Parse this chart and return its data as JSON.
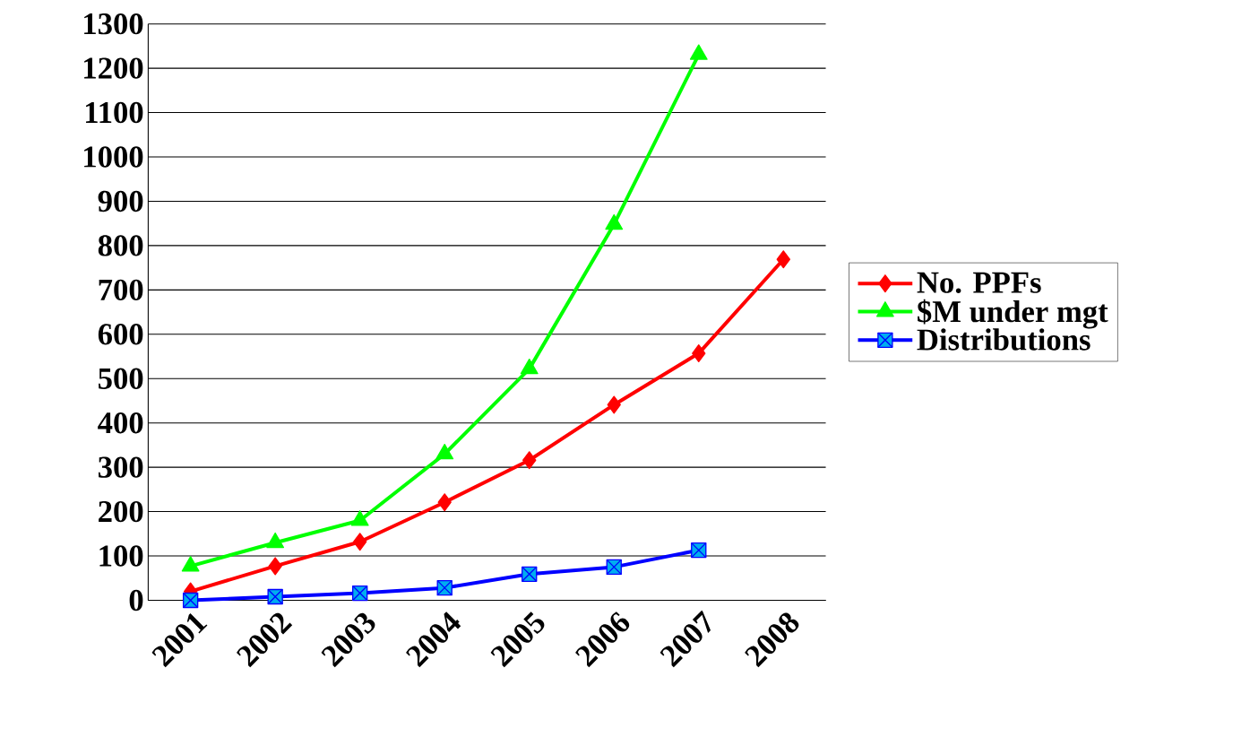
{
  "chart_data": {
    "type": "line",
    "categories": [
      "2001",
      "2002",
      "2003",
      "2004",
      "2005",
      "2006",
      "2007",
      "2008"
    ],
    "series": [
      {
        "name": "No. PPFs",
        "color": "#ff0000",
        "marker": "diamond",
        "values": [
          20,
          77,
          132,
          221,
          316,
          441,
          557,
          769
        ]
      },
      {
        "name": "$M under mgt",
        "color": "#00ff00",
        "marker": "triangle",
        "values": [
          77,
          130,
          180,
          330,
          522,
          848,
          1231,
          null
        ]
      },
      {
        "name": "Distributions",
        "color": "#0000ff",
        "marker": "square",
        "values": [
          0,
          8,
          16,
          28,
          59,
          75,
          113,
          null
        ]
      }
    ],
    "ylim": [
      0,
      1300
    ],
    "yticks": [
      0,
      100,
      200,
      300,
      400,
      500,
      600,
      700,
      800,
      900,
      1000,
      1100,
      1200,
      1300
    ],
    "grid": "y",
    "legend": "right",
    "line_style": "solid"
  }
}
